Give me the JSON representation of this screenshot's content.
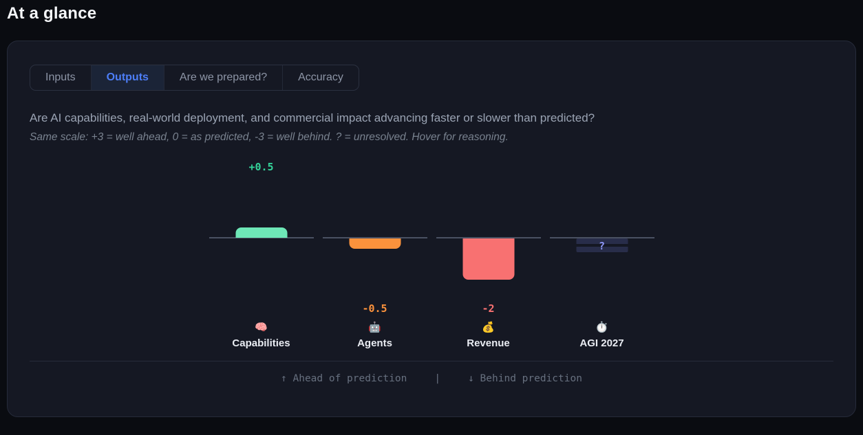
{
  "page": {
    "title": "At a glance"
  },
  "tabs": [
    {
      "label": "Inputs",
      "active": false
    },
    {
      "label": "Outputs",
      "active": true
    },
    {
      "label": "Are we prepared?",
      "active": false
    },
    {
      "label": "Accuracy",
      "active": false
    }
  ],
  "question": "Are AI capabilities, real-world deployment, and commercial impact advancing faster or slower than predicted?",
  "scale_note": "Same scale: +3 = well ahead, 0 = as predicted, -3 = well behind. ? = unresolved. Hover for reasoning.",
  "chart_data": {
    "type": "bar",
    "categories": [
      "Capabilities",
      "Agents",
      "Revenue",
      "AGI 2027"
    ],
    "values": [
      0.5,
      -0.5,
      -2,
      null
    ],
    "value_labels": [
      "+0.5",
      "-0.5",
      "-2",
      "?"
    ],
    "emojis": [
      "🧠",
      "🤖",
      "💰",
      "⏱️"
    ],
    "emoji_names": [
      "brain-emoji",
      "robot-emoji",
      "money-bag-emoji",
      "stopwatch-emoji"
    ],
    "bar_colors": [
      "#6ee7b7",
      "#fb923c",
      "#f87171",
      "rgba(129,140,248,0.18)"
    ],
    "label_colors": [
      "#34d399",
      "#fb923c",
      "#f87171",
      "#8e97f8"
    ],
    "ylim": [
      -3,
      3
    ],
    "baseline": 0,
    "grid": false,
    "unresolved_note": "? = unresolved",
    "title": "",
    "xlabel": "",
    "ylabel": ""
  },
  "legend": {
    "ahead": "↑ Ahead of prediction",
    "separator": "|",
    "behind": "↓ Behind prediction"
  },
  "colors": {
    "accent_blue": "#4d7ef7",
    "positive": "#34d399",
    "negative_mild": "#fb923c",
    "negative_strong": "#f87171",
    "unresolved": "#818cf8"
  }
}
